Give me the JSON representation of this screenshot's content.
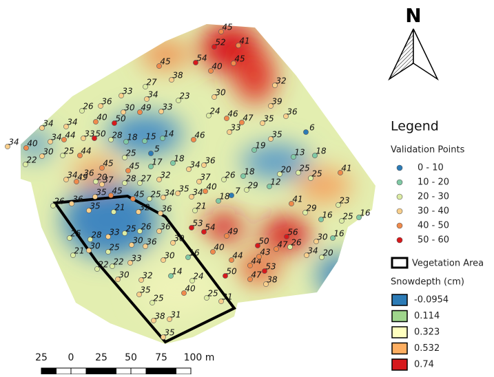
{
  "north": "N",
  "legend": {
    "title": "Legend",
    "points_title": "Validation Points",
    "classes": [
      {
        "label": "0 - 10",
        "color": "#2c7bb6"
      },
      {
        "label": "10 - 20",
        "color": "#80c9a5"
      },
      {
        "label": "20 - 30",
        "color": "#dcecA4"
      },
      {
        "label": "30 - 40",
        "color": "#f8cf8c"
      },
      {
        "label": "40 - 50",
        "color": "#ef8a4c"
      },
      {
        "label": "50 - 60",
        "color": "#d7191c"
      }
    ],
    "vegetation": "Vegetation Area",
    "snowdepth_title": "Snowdepth (cm)",
    "snowdepth": [
      {
        "value": -0.0954,
        "color": "#2c7bb6"
      },
      {
        "value": 0.114,
        "color": "#9fd58c"
      },
      {
        "value": 0.323,
        "color": "#ffffbf"
      },
      {
        "value": 0.532,
        "color": "#fdae61"
      },
      {
        "value": 0.74,
        "color": "#d7191c"
      }
    ]
  },
  "scale_bar": [
    "25",
    "0",
    "25",
    "50",
    "75",
    "100 m"
  ],
  "points": [
    45,
    52,
    41,
    45,
    54,
    40,
    45,
    38,
    32,
    27,
    33,
    34,
    23,
    30,
    26,
    36,
    30,
    49,
    33,
    39,
    24,
    46,
    47,
    36,
    35,
    40,
    50,
    33,
    35,
    6,
    34,
    34,
    34,
    40,
    34,
    44,
    33,
    50,
    28,
    18,
    15,
    14,
    46,
    30,
    25,
    44,
    22,
    19,
    13,
    18,
    25,
    5,
    18,
    34,
    36,
    17,
    45,
    45,
    26,
    18,
    20,
    25,
    25,
    41,
    34,
    36,
    37,
    32,
    37,
    28,
    27,
    29,
    12,
    7,
    18,
    40,
    34,
    35,
    34,
    25,
    45,
    45,
    35,
    49,
    20,
    26,
    36,
    35,
    21,
    32,
    36,
    21,
    41,
    29,
    16,
    25,
    23,
    16,
    36,
    25,
    33,
    25,
    26,
    28,
    53,
    54,
    49,
    56,
    50,
    47,
    26,
    30,
    16,
    34,
    20,
    30,
    30,
    36,
    16,
    40,
    21,
    30,
    25,
    33,
    44,
    44,
    43,
    53,
    22,
    22,
    30,
    50,
    47,
    38,
    14,
    24,
    30,
    32,
    40,
    25,
    31,
    35,
    25,
    38,
    31,
    35
  ]
}
